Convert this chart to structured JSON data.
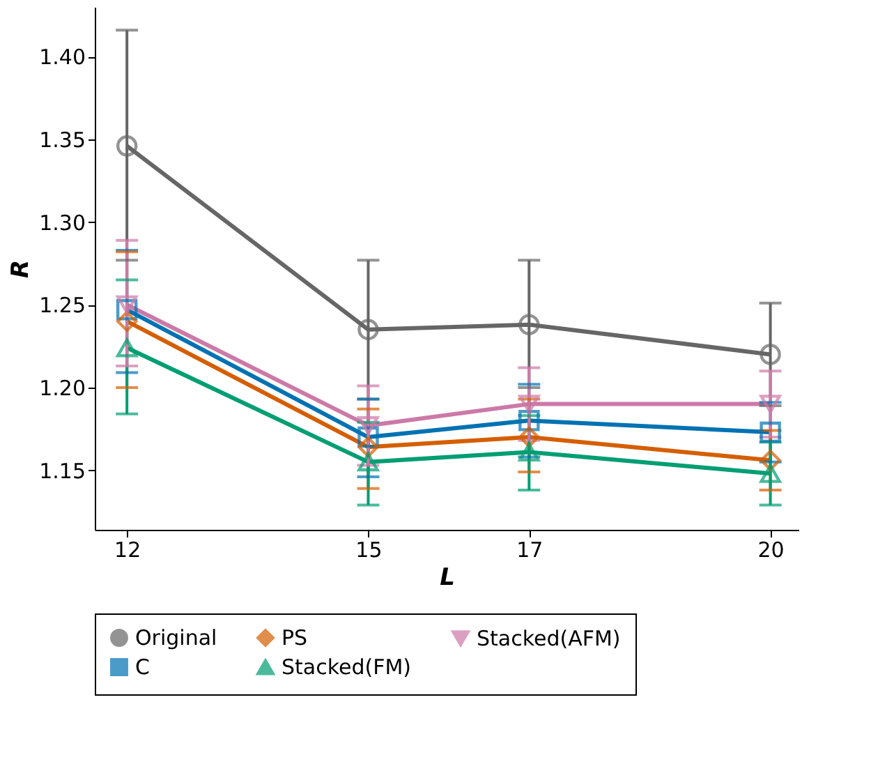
{
  "chart_data": {
    "type": "line",
    "xlabel": "L",
    "ylabel": "R",
    "x": [
      12,
      15,
      17,
      20
    ],
    "xlim": [
      11.6,
      20.35
    ],
    "xticks": [
      12,
      15,
      17,
      20
    ],
    "ylim": [
      1.114,
      1.43
    ],
    "yticks": [
      1.15,
      {
        "value": 1.2,
        "label": "1.20"
      },
      1.25,
      {
        "value": 1.3,
        "label": "1.30"
      },
      1.35,
      {
        "value": 1.4,
        "label": "1.40"
      }
    ],
    "grid": false,
    "legend": "bottom",
    "line_style": "solid",
    "series": [
      {
        "name": "Original",
        "color": "#666666",
        "marker": "circle",
        "values": [
          1.346,
          1.235,
          1.238,
          1.22
        ],
        "errors": [
          [
            1.277,
            1.416
          ],
          [
            1.193,
            1.277
          ],
          [
            1.2,
            1.277
          ],
          [
            1.189,
            1.251
          ]
        ]
      },
      {
        "name": "C",
        "color": "#0072b2",
        "marker": "square",
        "values": [
          1.247,
          1.17,
          1.18,
          1.173
        ],
        "errors": [
          [
            1.209,
            1.283
          ],
          [
            1.146,
            1.193
          ],
          [
            1.158,
            1.202
          ],
          [
            1.155,
            1.191
          ]
        ]
      },
      {
        "name": "PS",
        "color": "#d55e00",
        "marker": "diamond",
        "values": [
          1.24,
          1.164,
          1.17,
          1.156
        ],
        "errors": [
          [
            1.2,
            1.282
          ],
          [
            1.139,
            1.187
          ],
          [
            1.149,
            1.193
          ],
          [
            1.138,
            1.174
          ]
        ]
      },
      {
        "name": "Stacked(FM)",
        "color": "#009e73",
        "marker": "triangle",
        "values": [
          1.224,
          1.155,
          1.161,
          1.148
        ],
        "errors": [
          [
            1.184,
            1.265
          ],
          [
            1.129,
            1.179
          ],
          [
            1.138,
            1.183
          ],
          [
            1.129,
            1.167
          ]
        ]
      },
      {
        "name": "Stacked(AFM)",
        "color": "#cc79a7",
        "marker": "triangle-down",
        "values": [
          1.25,
          1.177,
          1.19,
          1.19
        ],
        "errors": [
          [
            1.213,
            1.289
          ],
          [
            1.153,
            1.201
          ],
          [
            1.168,
            1.212
          ],
          [
            1.17,
            1.21
          ]
        ]
      }
    ]
  }
}
